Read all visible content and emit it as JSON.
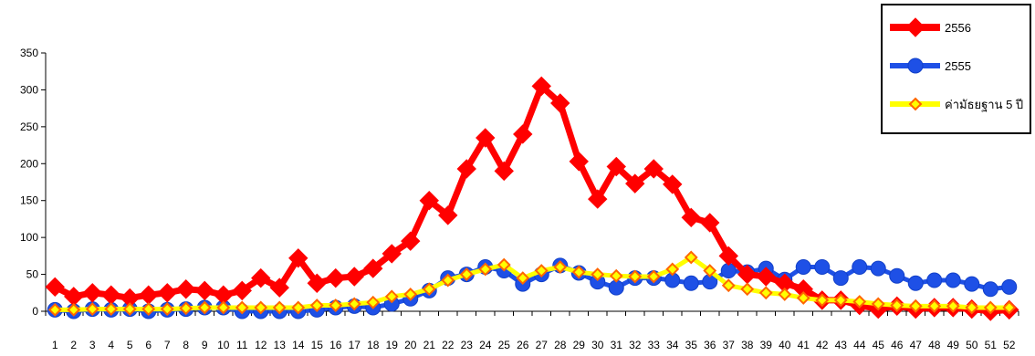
{
  "chart_data": {
    "type": "line",
    "title": "",
    "xlabel": "",
    "ylabel": "",
    "ylim": [
      0,
      350
    ],
    "yticks": [
      0,
      50,
      100,
      150,
      200,
      250,
      300,
      350
    ],
    "categories": [
      "1",
      "2",
      "3",
      "4",
      "5",
      "6",
      "7",
      "8",
      "9",
      "10",
      "11",
      "12",
      "13",
      "14",
      "15",
      "16",
      "17",
      "18",
      "19",
      "20",
      "21",
      "22",
      "23",
      "24",
      "25",
      "26",
      "27",
      "28",
      "29",
      "30",
      "31",
      "32",
      "33",
      "34",
      "35",
      "36",
      "37",
      "38",
      "39",
      "40",
      "41",
      "42",
      "43",
      "44",
      "45",
      "46",
      "47",
      "48",
      "49",
      "50",
      "51",
      "52"
    ],
    "grid": false,
    "legend_position": "top-right",
    "series": [
      {
        "name": "2556",
        "color": "#ff0000",
        "marker": "diamond",
        "values": [
          33,
          20,
          25,
          22,
          18,
          22,
          25,
          30,
          28,
          22,
          28,
          45,
          32,
          72,
          38,
          45,
          47,
          58,
          78,
          95,
          150,
          130,
          193,
          235,
          190,
          240,
          305,
          282,
          203,
          152,
          196,
          173,
          193,
          172,
          127,
          120,
          75,
          50,
          47,
          38,
          30,
          15,
          15,
          8,
          3,
          7,
          3,
          5,
          5,
          3,
          0,
          2
        ]
      },
      {
        "name": "2555",
        "color": "#1e50e6",
        "marker": "circle",
        "values": [
          2,
          0,
          3,
          2,
          3,
          0,
          2,
          3,
          5,
          5,
          0,
          0,
          0,
          0,
          2,
          5,
          7,
          5,
          10,
          17,
          28,
          45,
          50,
          60,
          55,
          37,
          50,
          62,
          52,
          40,
          32,
          45,
          45,
          42,
          38,
          40,
          55,
          53,
          58,
          43,
          60,
          60,
          45,
          60,
          58,
          48,
          38,
          42,
          42,
          37,
          30,
          33
        ]
      },
      {
        "name": "ค่ามัธยฐาน 5 ปี",
        "color": "#ffff00",
        "marker": "diamond-small",
        "values": [
          2,
          2,
          3,
          3,
          3,
          3,
          3,
          4,
          5,
          5,
          5,
          5,
          5,
          5,
          8,
          8,
          10,
          12,
          20,
          23,
          30,
          42,
          50,
          57,
          63,
          45,
          55,
          60,
          53,
          50,
          48,
          47,
          47,
          57,
          73,
          55,
          35,
          30,
          25,
          23,
          18,
          15,
          15,
          13,
          10,
          8,
          7,
          7,
          7,
          5,
          5,
          5
        ]
      }
    ]
  }
}
